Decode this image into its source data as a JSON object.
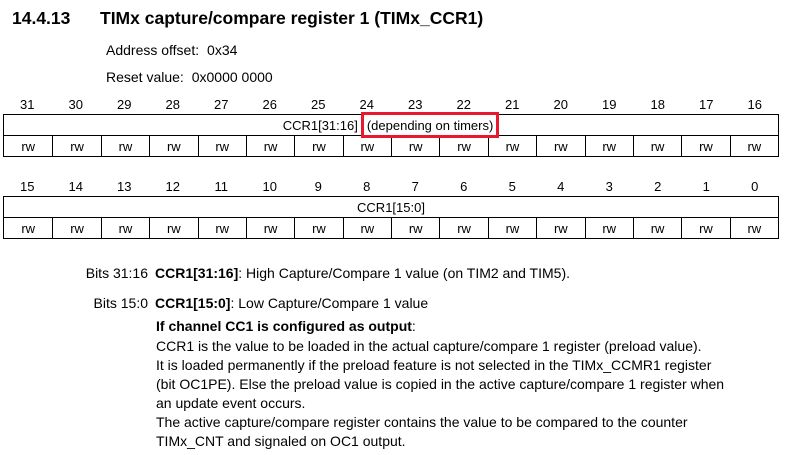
{
  "heading": {
    "section": "14.4.13",
    "title": "TIMx capture/compare register 1 (TIMx_CCR1)"
  },
  "register": {
    "address_offset_label": "Address offset:",
    "address_offset_value": "0x34",
    "reset_value_label": "Reset value:",
    "reset_value_value": "0x0000 0000"
  },
  "colors": {
    "highlight_red": "#e8192c",
    "text": "#000000",
    "table_border": "#000000"
  },
  "tables": [
    {
      "bits": [
        "31",
        "30",
        "29",
        "28",
        "27",
        "26",
        "25",
        "24",
        "23",
        "22",
        "21",
        "20",
        "19",
        "18",
        "17",
        "16"
      ],
      "field": "CCR1[31:16]",
      "note": "(depending on timers)",
      "access": [
        "rw",
        "rw",
        "rw",
        "rw",
        "rw",
        "rw",
        "rw",
        "rw",
        "rw",
        "rw",
        "rw",
        "rw",
        "rw",
        "rw",
        "rw",
        "rw"
      ]
    },
    {
      "bits": [
        "15",
        "14",
        "13",
        "12",
        "11",
        "10",
        "9",
        "8",
        "7",
        "6",
        "5",
        "4",
        "3",
        "2",
        "1",
        "0"
      ],
      "field": "CCR1[15:0]",
      "access": [
        "rw",
        "rw",
        "rw",
        "rw",
        "rw",
        "rw",
        "rw",
        "rw",
        "rw",
        "rw",
        "rw",
        "rw",
        "rw",
        "rw",
        "rw",
        "rw"
      ]
    }
  ],
  "description": {
    "rows": [
      {
        "label": "Bits 31:16",
        "field": "CCR1[31:16]",
        "text": ": High Capture/Compare 1 value (on TIM2 and TIM5)."
      },
      {
        "label": "Bits 15:0",
        "field": "CCR1[15:0]",
        "text": ": Low Capture/Compare 1 value"
      }
    ],
    "condition_heading": {
      "bold": "If channel CC1 is configured as output",
      "text": ":"
    },
    "lines": [
      "CCR1 is the value to be loaded in the actual capture/compare 1 register (preload value).",
      "It is loaded permanently if the preload feature is not selected in the TIMx_CCMR1 register",
      "(bit OC1PE). Else the preload value is copied in the active capture/compare 1 register when",
      "an update event occurs.",
      "The active capture/compare register contains the value to be compared to the counter",
      "TIMx_CNT and signaled on OC1 output."
    ]
  }
}
